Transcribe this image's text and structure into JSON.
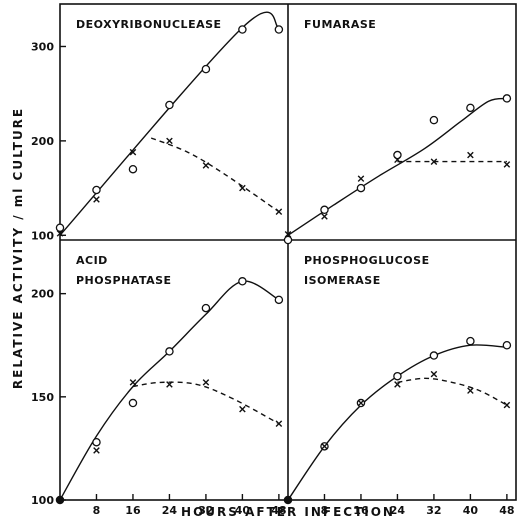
{
  "figure": {
    "ylabel": "RELATIVE ACTIVITY / ml CULTURE",
    "xlabel": "HOURS AFTER INFECTION"
  },
  "chart_data": [
    {
      "type": "line",
      "title": "DEOXYRIBONUCLEASE",
      "x_ticks": [],
      "y_ticks": [
        100,
        200,
        300
      ],
      "xlim": [
        0,
        50
      ],
      "ylim": [
        95,
        345
      ],
      "series": [
        {
          "marker": "o",
          "style": "solid",
          "x": [
            0,
            8,
            16,
            24,
            32,
            40,
            48
          ],
          "y": [
            108,
            148,
            170,
            238,
            276,
            318,
            318
          ]
        },
        {
          "marker": "x",
          "style": "dashed",
          "x": [
            0,
            8,
            16,
            24,
            32,
            40,
            48
          ],
          "y": [
            102,
            138,
            188,
            200,
            174,
            150,
            125
          ]
        }
      ],
      "fit_solid": [
        [
          0,
          100
        ],
        [
          40,
          320
        ],
        [
          48,
          320
        ]
      ],
      "fit_dashed": [
        [
          20,
          203
        ],
        [
          28,
          188
        ],
        [
          36,
          165
        ],
        [
          48,
          125
        ]
      ]
    },
    {
      "type": "line",
      "title": "FUMARASE",
      "x_ticks": [],
      "y_ticks": [],
      "xlim": [
        0,
        50
      ],
      "ylim": [
        95,
        345
      ],
      "series": [
        {
          "marker": "o",
          "style": "solid",
          "x": [
            0,
            8,
            16,
            24,
            32,
            40,
            48
          ],
          "y": [
            95,
            127,
            150,
            185,
            222,
            235,
            245
          ]
        },
        {
          "marker": "x",
          "style": "dashed",
          "x": [
            0,
            8,
            16,
            24,
            32,
            40,
            48
          ],
          "y": [
            101,
            120,
            160,
            180,
            178,
            185,
            175
          ]
        }
      ],
      "fit_solid": [
        [
          0,
          100
        ],
        [
          10,
          132
        ],
        [
          20,
          163
        ],
        [
          30,
          192
        ],
        [
          38,
          221
        ],
        [
          44,
          242
        ],
        [
          48,
          245
        ]
      ],
      "fit_dashed": [
        [
          24,
          178
        ],
        [
          32,
          178
        ],
        [
          40,
          178
        ],
        [
          48,
          178
        ]
      ]
    },
    {
      "type": "line",
      "title": "ACID\nPHOSPHATASE",
      "x_ticks": [
        8,
        16,
        24,
        32,
        40,
        48
      ],
      "y_ticks": [
        100,
        150,
        200
      ],
      "xlim": [
        0,
        50
      ],
      "ylim": [
        100,
        226
      ],
      "series": [
        {
          "marker": "o",
          "style": "solid",
          "x": [
            0,
            8,
            16,
            24,
            32,
            40,
            48
          ],
          "y": [
            100,
            128,
            147,
            172,
            193,
            206,
            197
          ]
        },
        {
          "marker": "x",
          "style": "dashed",
          "x": [
            0,
            8,
            16,
            24,
            32,
            40,
            48
          ],
          "y": [
            100,
            124,
            157,
            156,
            157,
            144,
            137
          ]
        }
      ],
      "fit_solid": [
        [
          0,
          100
        ],
        [
          8,
          131
        ],
        [
          16,
          155
        ],
        [
          24,
          172
        ],
        [
          32,
          190
        ],
        [
          40,
          206
        ],
        [
          48,
          197
        ]
      ],
      "fit_dashed": [
        [
          16,
          155
        ],
        [
          22,
          157
        ],
        [
          30,
          156
        ],
        [
          38,
          149
        ],
        [
          48,
          137
        ]
      ]
    },
    {
      "type": "line",
      "title": "PHOSPHOGLUCOSE\nISOMERASE",
      "x_ticks": [
        8,
        16,
        24,
        32,
        40,
        48
      ],
      "y_ticks": [],
      "xlim": [
        0,
        50
      ],
      "ylim": [
        100,
        226
      ],
      "series": [
        {
          "marker": "o",
          "style": "solid",
          "x": [
            0,
            8,
            16,
            24,
            32,
            40,
            48
          ],
          "y": [
            100,
            126,
            147,
            160,
            170,
            177,
            175
          ]
        },
        {
          "marker": "x",
          "style": "dashed",
          "x": [
            0,
            8,
            16,
            24,
            32,
            40,
            48
          ],
          "y": [
            100,
            126,
            147,
            156,
            161,
            153,
            146
          ]
        }
      ],
      "fit_solid": [
        [
          0,
          100
        ],
        [
          8,
          126
        ],
        [
          16,
          146
        ],
        [
          24,
          160
        ],
        [
          32,
          170
        ],
        [
          40,
          175
        ],
        [
          48,
          174
        ]
      ],
      "fit_dashed": [
        [
          24,
          157
        ],
        [
          30,
          159
        ],
        [
          36,
          157
        ],
        [
          42,
          153
        ],
        [
          48,
          146
        ]
      ]
    }
  ]
}
